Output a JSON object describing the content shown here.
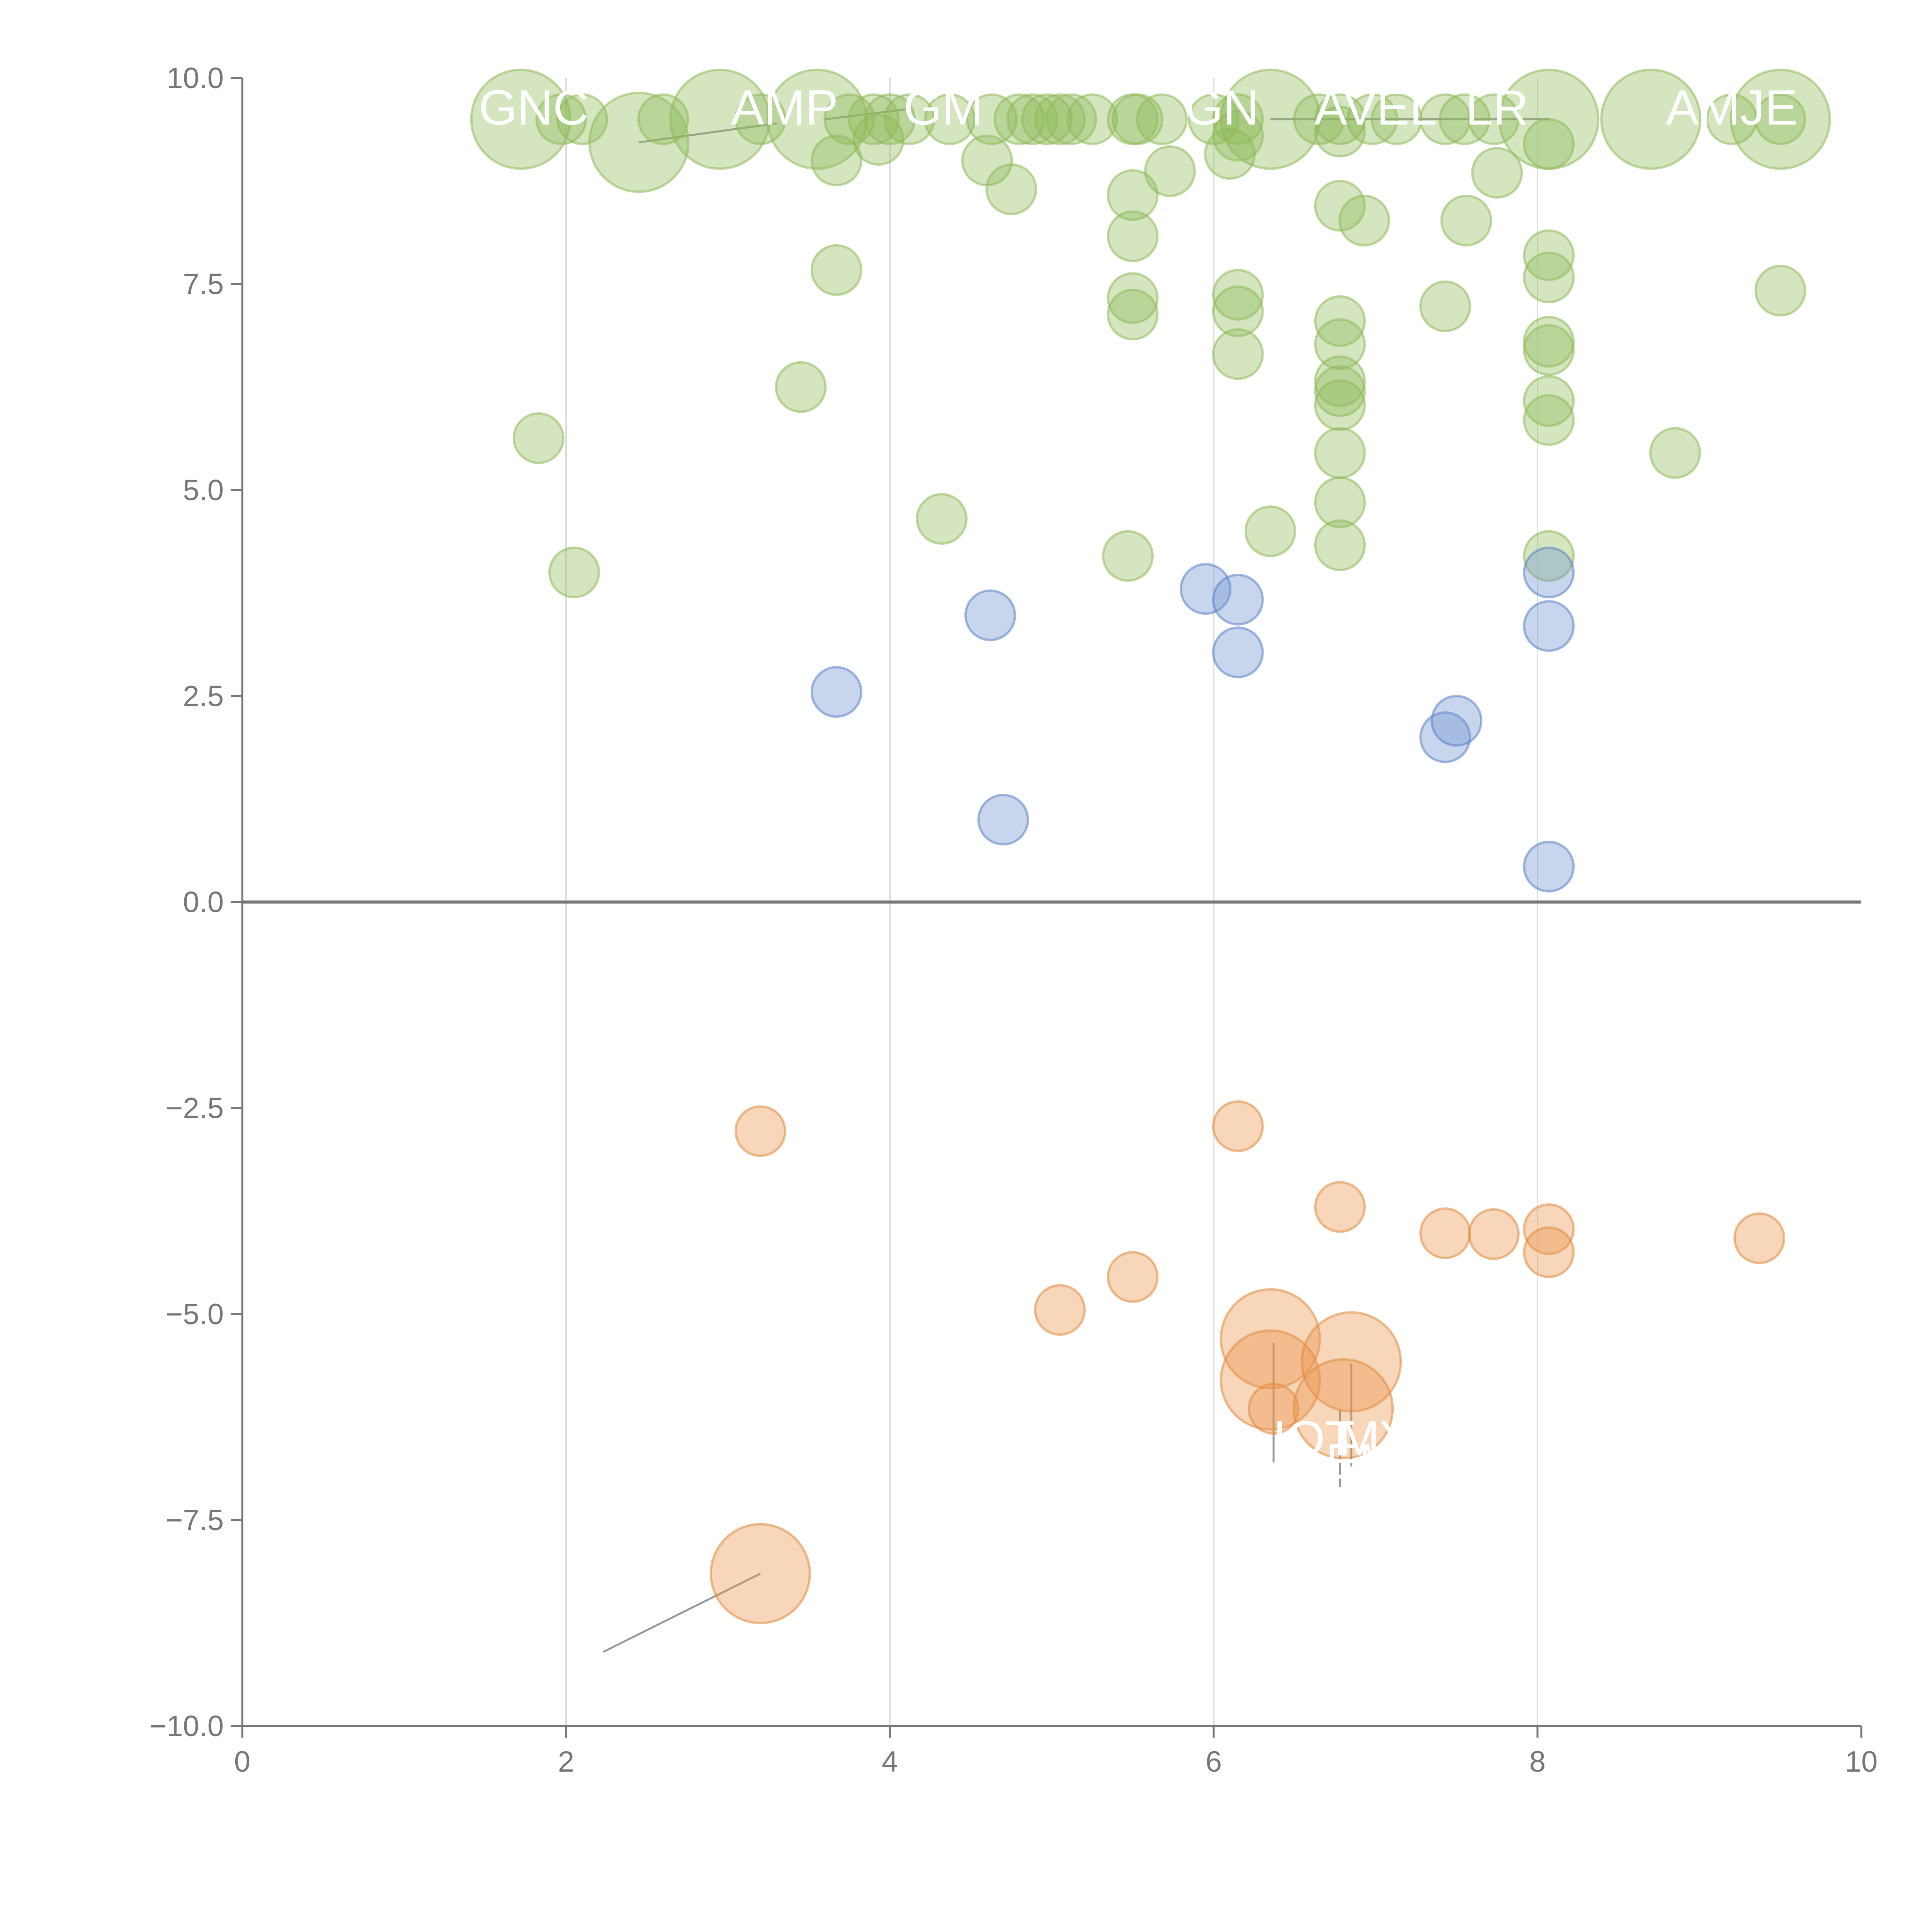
{
  "chart_data": {
    "type": "scatter",
    "variant": "bubble",
    "title": "",
    "xlabel": "",
    "ylabel": "",
    "xlim": [
      0,
      10
    ],
    "ylim": [
      -10,
      10
    ],
    "xticks": [
      0,
      2,
      4,
      6,
      8,
      10
    ],
    "xtick_labels": [
      "0",
      "2",
      "4",
      "6",
      "8",
      "10"
    ],
    "yticks": [
      -10,
      -7.5,
      -5,
      -2.5,
      0,
      2.5,
      5,
      7.5,
      10
    ],
    "ytick_labels": [
      "−10.0",
      "−7.5",
      "−5.0",
      "−2.5",
      "0.0",
      "2.5",
      "5.0",
      "7.5",
      "10.0"
    ],
    "vertical_gridlines": [
      2,
      4,
      6,
      8
    ],
    "zero_line": 0,
    "colors": {
      "green": {
        "fill": "#8fba5a",
        "stroke": "#8fba5a"
      },
      "blue": {
        "fill": "#6f93cf",
        "stroke": "#5b82c4"
      },
      "orange": {
        "fill": "#e9924a",
        "stroke": "#e08a3e"
      },
      "axis": "#777777",
      "grid": "#dddddd",
      "leader": "#999999",
      "label": "#ffffff"
    },
    "series": [
      {
        "name": "green",
        "color": "green",
        "points": [
          [
            1.72,
            9.5,
            3.2
          ],
          [
            1.97,
            9.5,
            1.6
          ],
          [
            2.1,
            9.5,
            1.6
          ],
          [
            2.45,
            9.22,
            3.2
          ],
          [
            2.6,
            9.5,
            1.6
          ],
          [
            2.95,
            9.5,
            3.2
          ],
          [
            3.2,
            9.5,
            1.6
          ],
          [
            3.55,
            9.5,
            3.2
          ],
          [
            3.67,
            9.0,
            1.6
          ],
          [
            3.75,
            9.5,
            1.6
          ],
          [
            3.9,
            9.5,
            1.6
          ],
          [
            3.93,
            9.25,
            1.6
          ],
          [
            4.0,
            9.5,
            1.6
          ],
          [
            4.12,
            9.5,
            1.6
          ],
          [
            4.37,
            9.5,
            1.6
          ],
          [
            4.6,
            9.0,
            1.6
          ],
          [
            4.63,
            9.5,
            1.6
          ],
          [
            4.75,
            8.65,
            1.6
          ],
          [
            4.8,
            9.5,
            1.6
          ],
          [
            4.88,
            9.5,
            1.6
          ],
          [
            4.97,
            9.5,
            1.6
          ],
          [
            5.05,
            9.5,
            1.6
          ],
          [
            5.12,
            9.5,
            1.6
          ],
          [
            5.25,
            9.5,
            1.6
          ],
          [
            5.5,
            9.5,
            1.6
          ],
          [
            5.53,
            9.5,
            1.6
          ],
          [
            5.68,
            9.5,
            1.6
          ],
          [
            5.5,
            8.58,
            1.6
          ],
          [
            5.5,
            8.08,
            1.6
          ],
          [
            5.73,
            8.87,
            1.6
          ],
          [
            6.0,
            9.5,
            1.6
          ],
          [
            6.1,
            9.08,
            1.6
          ],
          [
            6.15,
            9.3,
            1.6
          ],
          [
            6.15,
            9.5,
            1.6
          ],
          [
            6.35,
            9.5,
            3.2
          ],
          [
            6.65,
            9.5,
            1.6
          ],
          [
            6.78,
            9.35,
            1.6
          ],
          [
            6.78,
            9.5,
            1.6
          ],
          [
            6.78,
            8.45,
            1.6
          ],
          [
            6.93,
            8.27,
            1.6
          ],
          [
            6.98,
            9.5,
            1.6
          ],
          [
            7.13,
            9.5,
            1.6
          ],
          [
            7.43,
            9.5,
            1.6
          ],
          [
            7.55,
            9.5,
            1.6
          ],
          [
            7.56,
            8.27,
            1.6
          ],
          [
            7.73,
            9.5,
            1.6
          ],
          [
            7.75,
            8.85,
            1.6
          ],
          [
            8.07,
            9.2,
            1.6
          ],
          [
            8.07,
            9.5,
            3.2
          ],
          [
            8.7,
            9.5,
            3.2
          ],
          [
            9.2,
            9.5,
            1.6
          ],
          [
            9.5,
            9.5,
            3.2
          ],
          [
            9.5,
            9.5,
            1.6
          ],
          [
            3.67,
            7.67,
            1.6
          ],
          [
            5.5,
            7.33,
            1.6
          ],
          [
            5.5,
            7.13,
            1.6
          ],
          [
            6.15,
            7.37,
            1.6
          ],
          [
            6.15,
            7.17,
            1.6
          ],
          [
            6.15,
            6.65,
            1.6
          ],
          [
            6.78,
            7.05,
            1.6
          ],
          [
            6.78,
            6.77,
            1.6
          ],
          [
            6.78,
            6.32,
            1.6
          ],
          [
            6.78,
            6.2,
            1.6
          ],
          [
            6.78,
            6.03,
            1.6
          ],
          [
            6.78,
            5.45,
            1.6
          ],
          [
            6.78,
            4.85,
            1.6
          ],
          [
            6.78,
            4.33,
            1.6
          ],
          [
            7.43,
            7.23,
            1.6
          ],
          [
            8.07,
            7.85,
            1.6
          ],
          [
            8.07,
            7.58,
            1.6
          ],
          [
            8.07,
            6.8,
            1.6
          ],
          [
            8.07,
            6.7,
            1.6
          ],
          [
            8.07,
            6.08,
            1.6
          ],
          [
            8.07,
            5.85,
            1.6
          ],
          [
            8.07,
            4.2,
            1.6
          ],
          [
            9.5,
            7.42,
            1.6
          ],
          [
            8.85,
            5.45,
            1.6
          ],
          [
            3.45,
            6.25,
            1.6
          ],
          [
            1.83,
            5.63,
            1.6
          ],
          [
            2.05,
            4.0,
            1.6
          ],
          [
            4.32,
            4.65,
            1.6
          ],
          [
            5.47,
            4.2,
            1.6
          ],
          [
            6.35,
            4.5,
            1.6
          ]
        ]
      },
      {
        "name": "blue",
        "color": "blue",
        "points": [
          [
            3.67,
            2.55,
            1.6
          ],
          [
            4.62,
            3.48,
            1.6
          ],
          [
            4.7,
            1.0,
            1.6
          ],
          [
            5.95,
            3.8,
            1.6
          ],
          [
            6.15,
            3.67,
            1.6
          ],
          [
            6.15,
            3.03,
            1.6
          ],
          [
            7.43,
            2.0,
            1.6
          ],
          [
            7.5,
            2.2,
            1.6
          ],
          [
            8.07,
            4.0,
            1.6
          ],
          [
            8.07,
            3.35,
            1.6
          ],
          [
            8.07,
            0.43,
            1.6
          ]
        ]
      },
      {
        "name": "orange",
        "color": "orange",
        "points": [
          [
            3.2,
            -2.78,
            1.6
          ],
          [
            6.15,
            -2.72,
            1.6
          ],
          [
            6.78,
            -3.7,
            1.6
          ],
          [
            7.43,
            -4.02,
            1.6
          ],
          [
            7.73,
            -4.03,
            1.6
          ],
          [
            8.07,
            -3.97,
            1.6
          ],
          [
            8.07,
            -4.25,
            1.6
          ],
          [
            9.37,
            -4.08,
            1.6
          ],
          [
            5.5,
            -4.55,
            1.6
          ],
          [
            5.05,
            -4.95,
            1.6
          ],
          [
            6.35,
            -5.3,
            3.2
          ],
          [
            6.35,
            -5.8,
            3.2
          ],
          [
            6.37,
            -6.15,
            1.6
          ],
          [
            6.85,
            -5.58,
            3.2
          ],
          [
            6.8,
            -6.15,
            3.2
          ],
          [
            3.2,
            -8.15,
            3.2
          ]
        ]
      }
    ],
    "annotations": [
      {
        "text": "GNC",
        "x": 1.8,
        "y": 9.95,
        "color": "label"
      },
      {
        "text": "AMP",
        "x": 3.35,
        "y": 9.95,
        "color": "label"
      },
      {
        "text": "GM",
        "x": 4.33,
        "y": 9.95,
        "color": "label"
      },
      {
        "text": "GN",
        "x": 6.05,
        "y": 9.95,
        "color": "label"
      },
      {
        "text": "AVEL",
        "x": 7.0,
        "y": 9.95,
        "color": "label"
      },
      {
        "text": "LR",
        "x": 7.75,
        "y": 9.95,
        "color": "label"
      },
      {
        "text": "AMJE",
        "x": 9.2,
        "y": 9.95,
        "color": "label"
      },
      {
        "text": "IOT",
        "x": 6.62,
        "y": -6.2,
        "color": "label"
      },
      {
        "text": "MY",
        "x": 7.0,
        "y": -6.2,
        "color": "label"
      },
      {
        "text": "EM",
        "x": 6.92,
        "y": -6.48,
        "color": "label"
      }
    ],
    "leader_lines": [
      {
        "from": [
          3.2,
          -8.15
        ],
        "to": [
          2.23,
          -9.1
        ]
      },
      {
        "from": [
          6.37,
          -5.35
        ],
        "to": [
          6.37,
          -6.8
        ]
      },
      {
        "from": [
          6.85,
          -5.6
        ],
        "to": [
          6.85,
          -6.85
        ]
      },
      {
        "from": [
          6.78,
          -6.15
        ],
        "to": [
          6.78,
          -7.1
        ]
      },
      {
        "from": [
          2.45,
          9.22
        ],
        "to": [
          3.3,
          9.45
        ]
      },
      {
        "from": [
          3.6,
          9.5
        ],
        "to": [
          4.1,
          9.62
        ]
      },
      {
        "from": [
          6.35,
          9.5
        ],
        "to": [
          8.07,
          9.5
        ]
      }
    ]
  }
}
